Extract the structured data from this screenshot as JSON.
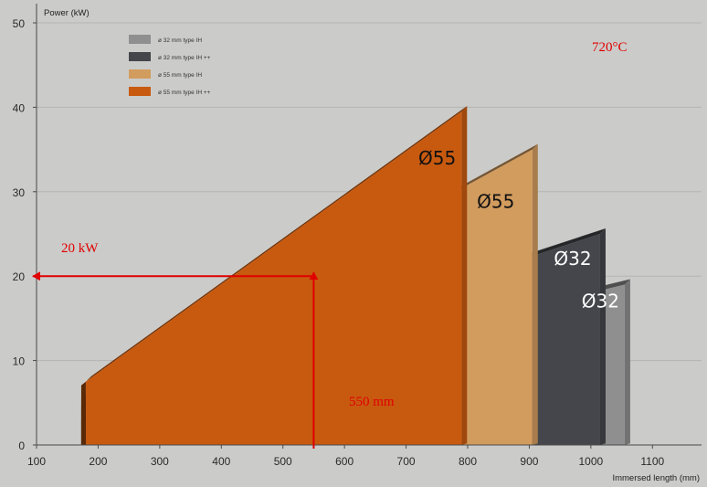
{
  "chart_data": {
    "type": "area",
    "ylabel": "Power (kW)",
    "xlabel": "Immersed length (mm)",
    "xlim": [
      100,
      1150
    ],
    "ylim": [
      0,
      50
    ],
    "x_ticks": [
      100,
      200,
      300,
      400,
      500,
      600,
      700,
      800,
      900,
      1000,
      1100
    ],
    "y_ticks": [
      0,
      10,
      20,
      30,
      40,
      50
    ],
    "grid": "horizontal",
    "legend_position": "top-left",
    "series": [
      {
        "name": "ø 32 mm type IH",
        "color": "#8f8f8f",
        "x": [
          180,
          1055
        ],
        "y": [
          3.5,
          19
        ]
      },
      {
        "name": "ø 32 mm type IH ++",
        "color": "#45464b",
        "x": [
          180,
          1015
        ],
        "y": [
          5,
          25
        ]
      },
      {
        "name": "ø 55 mm type IH",
        "color": "#d29c5e",
        "x": [
          180,
          905
        ],
        "y": [
          6,
          35
        ]
      },
      {
        "name": "ø 55 mm type IH ++",
        "color": "#c85a10",
        "x": [
          180,
          790
        ],
        "y": [
          7.5,
          39.5
        ]
      }
    ],
    "slab_labels": [
      {
        "text": "Ø55",
        "x": 720,
        "y": 33.2,
        "color": "#111111"
      },
      {
        "text": "Ø55",
        "x": 815,
        "y": 28.1,
        "color": "#111111"
      },
      {
        "text": "Ø32",
        "x": 940,
        "y": 21.3,
        "color": "#ffffff"
      },
      {
        "text": "Ø32",
        "x": 985,
        "y": 16.3,
        "color": "#ffffff"
      }
    ],
    "annotations": [
      {
        "text": "720°C"
      },
      {
        "text": "20 kW"
      },
      {
        "text": "550 mm"
      }
    ],
    "reference": {
      "x": 550,
      "y": 20
    }
  }
}
